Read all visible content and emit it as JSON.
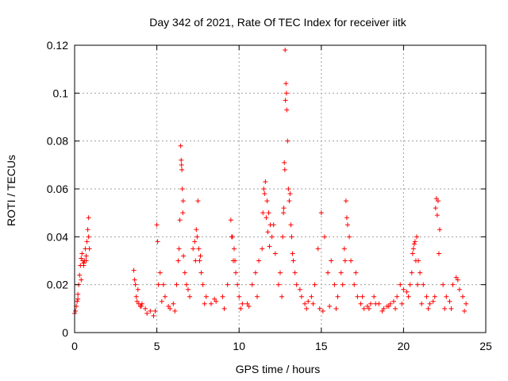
{
  "chart_data": {
    "type": "scatter",
    "title": "Day 342 of 2021, Rate Of TEC Index for receiver iitk",
    "xlabel": "GPS time / hours",
    "ylabel": "ROTI / TECUs",
    "xlim": [
      0,
      25
    ],
    "ylim": [
      0,
      0.12
    ],
    "x_ticks": [
      0,
      5,
      10,
      15,
      20,
      25
    ],
    "x_tick_labels": [
      "0",
      "5",
      "10",
      "15",
      "20",
      "25"
    ],
    "y_ticks": [
      0,
      0.02,
      0.04,
      0.06,
      0.08,
      0.1,
      0.12
    ],
    "y_tick_labels": [
      "0",
      "0.02",
      "0.04",
      "0.06",
      "0.08",
      "0.1",
      "0.12"
    ],
    "grid": true,
    "marker": "+",
    "color": "#ff0000",
    "series": [
      {
        "name": "ROTI",
        "x": [
          0.0,
          0.1,
          0.15,
          0.2,
          0.25,
          0.3,
          0.35,
          0.4,
          0.45,
          0.5,
          0.55,
          0.6,
          0.65,
          0.7,
          0.75,
          0.8,
          0.85,
          0.9,
          3.6,
          3.7,
          3.75,
          3.8,
          3.9,
          4.0,
          4.1,
          4.3,
          4.6,
          4.9,
          5.0,
          5.1,
          5.2,
          5.3,
          5.5,
          5.8,
          6.0,
          6.2,
          6.3,
          6.4,
          6.45,
          6.5,
          6.55,
          6.6,
          6.7,
          6.8,
          7.0,
          7.2,
          7.3,
          7.4,
          7.5,
          7.6,
          7.7,
          7.8,
          8.0,
          8.3,
          8.6,
          9.0,
          9.3,
          9.5,
          9.6,
          9.7,
          9.75,
          9.8,
          9.9,
          10.0,
          10.2,
          10.5,
          10.8,
          11.0,
          11.2,
          11.4,
          11.5,
          11.6,
          11.7,
          11.8,
          11.9,
          12.0,
          12.2,
          12.4,
          12.6,
          12.7,
          12.75,
          12.8,
          12.85,
          12.9,
          13.0,
          13.1,
          13.2,
          13.3,
          13.5,
          13.8,
          14.0,
          14.2,
          14.4,
          14.6,
          14.8,
          15.0,
          15.2,
          15.4,
          15.6,
          15.8,
          16.0,
          16.2,
          16.4,
          16.5,
          16.6,
          16.8,
          17.0,
          17.2,
          17.4,
          17.6,
          17.8,
          18.0,
          18.2,
          18.5,
          18.8,
          19.0,
          19.2,
          19.4,
          19.6,
          19.8,
          20.0,
          20.2,
          20.4,
          20.5,
          20.6,
          20.7,
          20.8,
          20.9,
          21.0,
          21.2,
          21.4,
          21.6,
          21.8,
          21.9,
          22.0,
          22.1,
          22.2,
          22.4,
          22.6,
          22.8,
          23.0,
          23.2,
          23.4,
          23.6,
          23.8,
          0.05,
          0.2,
          0.4,
          0.55,
          0.7,
          0.85,
          3.65,
          3.85,
          4.05,
          4.4,
          4.8,
          5.05,
          5.4,
          5.7,
          6.1,
          6.35,
          6.48,
          6.52,
          6.58,
          6.62,
          6.9,
          7.35,
          7.45,
          7.55,
          7.65,
          7.9,
          8.5,
          9.1,
          9.55,
          9.65,
          10.1,
          10.6,
          11.1,
          11.45,
          11.55,
          11.65,
          11.75,
          11.85,
          12.1,
          12.5,
          12.65,
          12.72,
          12.78,
          12.82,
          12.88,
          12.95,
          13.05,
          13.15,
          13.25,
          13.4,
          13.7,
          14.1,
          14.5,
          14.9,
          15.1,
          15.5,
          15.9,
          16.3,
          16.45,
          16.55,
          16.7,
          17.1,
          17.5,
          17.9,
          18.3,
          18.7,
          19.1,
          19.5,
          19.9,
          20.3,
          20.55,
          20.65,
          20.75,
          20.85,
          21.1,
          21.5,
          21.95,
          22.05,
          22.15,
          22.5,
          22.9,
          23.3,
          23.7
        ],
        "y": [
          0.008,
          0.011,
          0.013,
          0.016,
          0.02,
          0.024,
          0.028,
          0.031,
          0.033,
          0.03,
          0.028,
          0.03,
          0.035,
          0.03,
          0.038,
          0.043,
          0.048,
          0.035,
          0.026,
          0.02,
          0.015,
          0.013,
          0.012,
          0.011,
          0.012,
          0.01,
          0.009,
          0.009,
          0.045,
          0.02,
          0.025,
          0.013,
          0.015,
          0.01,
          0.012,
          0.02,
          0.03,
          0.047,
          0.078,
          0.07,
          0.06,
          0.055,
          0.025,
          0.02,
          0.015,
          0.035,
          0.038,
          0.043,
          0.055,
          0.03,
          0.025,
          0.02,
          0.015,
          0.012,
          0.013,
          0.015,
          0.02,
          0.047,
          0.04,
          0.035,
          0.03,
          0.025,
          0.02,
          0.015,
          0.012,
          0.012,
          0.02,
          0.025,
          0.03,
          0.035,
          0.06,
          0.063,
          0.055,
          0.05,
          0.045,
          0.04,
          0.033,
          0.02,
          0.015,
          0.05,
          0.071,
          0.118,
          0.104,
          0.093,
          0.06,
          0.058,
          0.04,
          0.03,
          0.02,
          0.015,
          0.012,
          0.013,
          0.015,
          0.02,
          0.035,
          0.05,
          0.04,
          0.025,
          0.03,
          0.02,
          0.015,
          0.025,
          0.035,
          0.055,
          0.045,
          0.03,
          0.02,
          0.015,
          0.012,
          0.01,
          0.011,
          0.012,
          0.015,
          0.012,
          0.01,
          0.011,
          0.012,
          0.013,
          0.015,
          0.02,
          0.018,
          0.017,
          0.02,
          0.025,
          0.035,
          0.038,
          0.04,
          0.03,
          0.025,
          0.02,
          0.015,
          0.012,
          0.013,
          0.015,
          0.056,
          0.055,
          0.043,
          0.02,
          0.015,
          0.013,
          0.02,
          0.023,
          0.018,
          0.015,
          0.012,
          0.009,
          0.014,
          0.022,
          0.029,
          0.032,
          0.04,
          0.022,
          0.018,
          0.011,
          0.008,
          0.007,
          0.038,
          0.02,
          0.011,
          0.009,
          0.035,
          0.072,
          0.068,
          0.05,
          0.032,
          0.018,
          0.03,
          0.04,
          0.035,
          0.032,
          0.012,
          0.014,
          0.01,
          0.04,
          0.03,
          0.01,
          0.011,
          0.015,
          0.05,
          0.058,
          0.048,
          0.042,
          0.036,
          0.045,
          0.025,
          0.04,
          0.052,
          0.068,
          0.097,
          0.1,
          0.08,
          0.055,
          0.045,
          0.033,
          0.025,
          0.018,
          0.01,
          0.012,
          0.01,
          0.009,
          0.011,
          0.01,
          0.02,
          0.03,
          0.048,
          0.04,
          0.025,
          0.015,
          0.01,
          0.012,
          0.009,
          0.011,
          0.01,
          0.012,
          0.015,
          0.033,
          0.037,
          0.03,
          0.02,
          0.012,
          0.01,
          0.052,
          0.049,
          0.033,
          0.01,
          0.01,
          0.022,
          0.009
        ]
      }
    ]
  }
}
